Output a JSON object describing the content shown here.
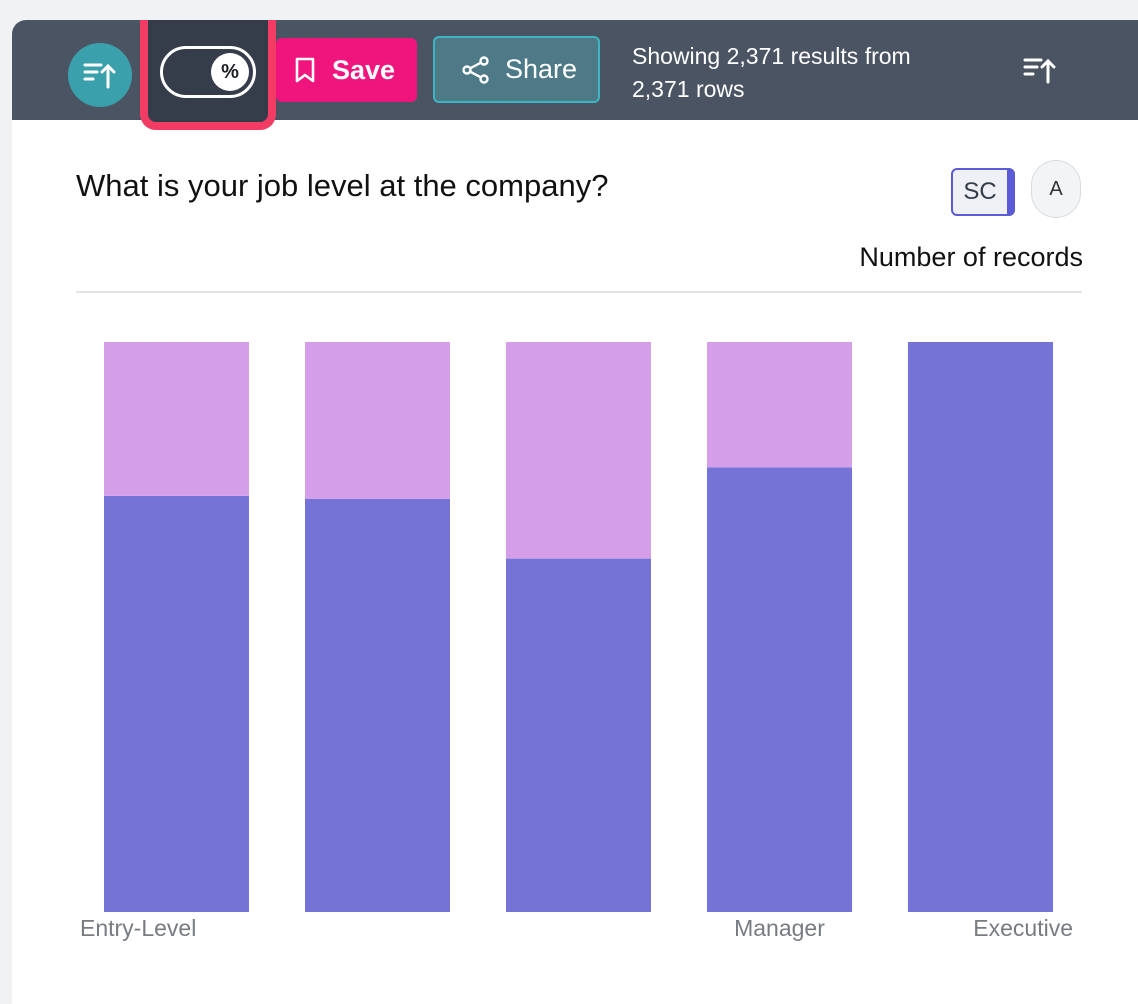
{
  "toolbar": {
    "sort_icon": "sort-ascending-icon",
    "percent_toggle_label": "%",
    "save_label": "Save",
    "save_icon": "bookmark-icon",
    "share_label": "Share",
    "share_icon": "share-icon",
    "results_line1": "Showing 2,371 results from",
    "results_line2": "2,371 rows",
    "right_icon": "sort-ascending-icon"
  },
  "panel": {
    "question": "What is your job level at the company?",
    "sc_label": "SC",
    "a_label": "A",
    "measure_label": "Number of records"
  },
  "colors": {
    "toolbar_bg": "#4b5462",
    "sort_button": "#3aa0ab",
    "save_button": "#f0147d",
    "share_button": "#4d7a86",
    "highlight": "#f23c64",
    "series_1": "#7574d6",
    "series_2": "#d49ee9"
  },
  "chart_data": {
    "type": "bar",
    "stacked": true,
    "normalized_percent": true,
    "categories": [
      "Entry-Level",
      "",
      "",
      "Manager",
      "Executive"
    ],
    "series": [
      {
        "values": [
          73,
          72.5,
          62,
          78,
          100
        ],
        "color": "#7574d6"
      },
      {
        "values": [
          27,
          27.5,
          38,
          22,
          0
        ],
        "color": "#d49ee9"
      }
    ],
    "ylim": [
      0,
      100
    ],
    "grid": false,
    "legend": "none"
  }
}
